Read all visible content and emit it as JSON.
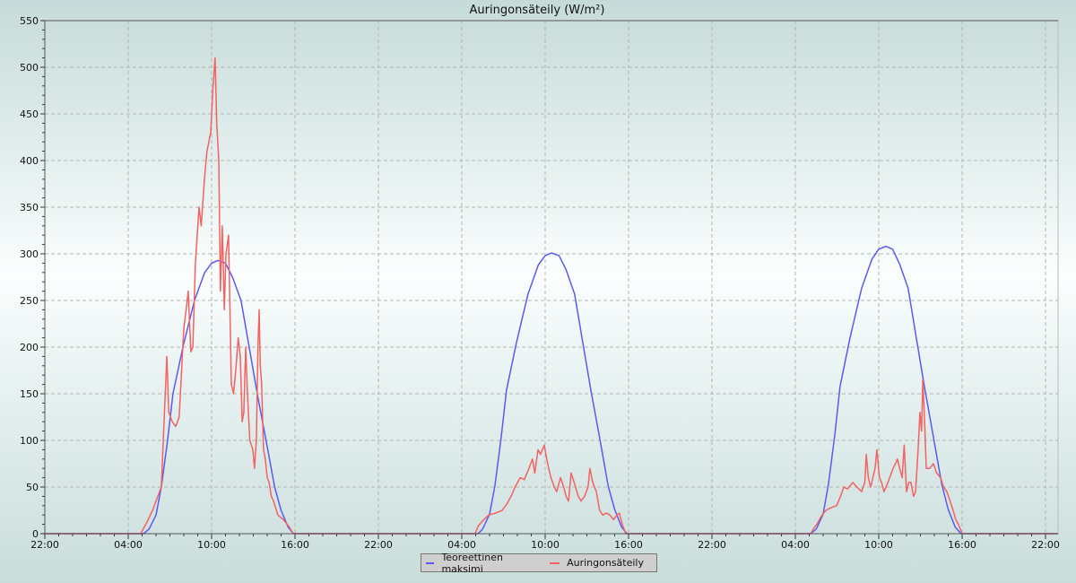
{
  "chart_data": {
    "type": "line",
    "title": "Auringonsäteily (W/m²)",
    "xlabel": "",
    "ylabel": "",
    "x_tick_labels": [
      "22:00",
      "04:00",
      "10:00",
      "16:00",
      "22:00",
      "04:00",
      "10:00",
      "16:00",
      "22:00",
      "04:00",
      "10:00",
      "16:00",
      "22:00"
    ],
    "x_range": [
      "22:00",
      "22:54"
    ],
    "ylim": [
      0,
      550
    ],
    "y_ticks": [
      0,
      50,
      100,
      150,
      200,
      250,
      300,
      350,
      400,
      450,
      500,
      550
    ],
    "grid": true,
    "legend_placement": "bottom",
    "series": [
      {
        "name": "Teoreettinen maksimi",
        "color": "#5a5af0",
        "days": [
          [
            [
              "05:06",
              0
            ],
            [
              "05:30",
              5
            ],
            [
              "06:00",
              20
            ],
            [
              "06:23",
              50
            ],
            [
              "06:50",
              100
            ],
            [
              "07:13",
              150
            ],
            [
              "07:56",
              200
            ],
            [
              "08:46",
              250
            ],
            [
              "09:30",
              280
            ],
            [
              "10:00",
              290
            ],
            [
              "10:28",
              293
            ],
            [
              "11:00",
              290
            ],
            [
              "11:30",
              275
            ],
            [
              "12:07",
              250
            ],
            [
              "12:42",
              200
            ],
            [
              "13:17",
              150
            ],
            [
              "13:55",
              100
            ],
            [
              "14:32",
              50
            ],
            [
              "15:00",
              25
            ],
            [
              "15:30",
              7
            ],
            [
              "15:53",
              0
            ]
          ],
          [
            [
              "05:10",
              0
            ],
            [
              "05:30",
              5
            ],
            [
              "06:00",
              21
            ],
            [
              "06:23",
              51
            ],
            [
              "06:50",
              103
            ],
            [
              "07:13",
              154
            ],
            [
              "07:56",
              205
            ],
            [
              "08:46",
              257
            ],
            [
              "09:30",
              288
            ],
            [
              "10:00",
              298
            ],
            [
              "10:27",
              301
            ],
            [
              "11:00",
              298
            ],
            [
              "11:30",
              283
            ],
            [
              "12:07",
              257
            ],
            [
              "12:42",
              205
            ],
            [
              "13:17",
              154
            ],
            [
              "13:55",
              103
            ],
            [
              "14:32",
              51
            ],
            [
              "15:00",
              26
            ],
            [
              "15:30",
              7
            ],
            [
              "15:53",
              0
            ]
          ],
          [
            [
              "05:06",
              0
            ],
            [
              "05:30",
              5
            ],
            [
              "06:00",
              21
            ],
            [
              "06:23",
              53
            ],
            [
              "06:50",
              105
            ],
            [
              "07:13",
              158
            ],
            [
              "07:56",
              210
            ],
            [
              "08:46",
              263
            ],
            [
              "09:30",
              294
            ],
            [
              "10:00",
              305
            ],
            [
              "10:31",
              308
            ],
            [
              "11:00",
              305
            ],
            [
              "11:30",
              289
            ],
            [
              "12:07",
              263
            ],
            [
              "12:42",
              210
            ],
            [
              "13:17",
              158
            ],
            [
              "13:55",
              105
            ],
            [
              "14:32",
              53
            ],
            [
              "15:00",
              26
            ],
            [
              "15:30",
              7
            ],
            [
              "15:55",
              0
            ]
          ]
        ]
      },
      {
        "name": "Auringonsäteily",
        "color": "#f46262",
        "days": [
          [
            [
              "04:54",
              0
            ],
            [
              "05:20",
              12
            ],
            [
              "05:45",
              25
            ],
            [
              "06:23",
              50
            ],
            [
              "06:40",
              150
            ],
            [
              "06:47",
              190
            ],
            [
              "06:55",
              130
            ],
            [
              "07:10",
              120
            ],
            [
              "07:25",
              115
            ],
            [
              "07:40",
              125
            ],
            [
              "08:00",
              220
            ],
            [
              "08:10",
              240
            ],
            [
              "08:19",
              260
            ],
            [
              "08:30",
              195
            ],
            [
              "08:39",
              200
            ],
            [
              "08:50",
              290
            ],
            [
              "09:06",
              350
            ],
            [
              "09:15",
              330
            ],
            [
              "09:29",
              380
            ],
            [
              "09:40",
              410
            ],
            [
              "09:56",
              430
            ],
            [
              "10:05",
              475
            ],
            [
              "10:15",
              510
            ],
            [
              "10:22",
              440
            ],
            [
              "10:31",
              400
            ],
            [
              "10:38",
              260
            ],
            [
              "10:46",
              330
            ],
            [
              "10:55",
              240
            ],
            [
              "11:02",
              300
            ],
            [
              "11:13",
              320
            ],
            [
              "11:25",
              160
            ],
            [
              "11:35",
              150
            ],
            [
              "11:44",
              175
            ],
            [
              "11:55",
              210
            ],
            [
              "12:04",
              190
            ],
            [
              "12:12",
              120
            ],
            [
              "12:19",
              130
            ],
            [
              "12:27",
              200
            ],
            [
              "12:35",
              150
            ],
            [
              "12:45",
              100
            ],
            [
              "12:58",
              90
            ],
            [
              "13:05",
              70
            ],
            [
              "13:13",
              100
            ],
            [
              "13:20",
              200
            ],
            [
              "13:25",
              240
            ],
            [
              "13:30",
              180
            ],
            [
              "13:36",
              160
            ],
            [
              "13:44",
              90
            ],
            [
              "13:52",
              80
            ],
            [
              "14:00",
              60
            ],
            [
              "14:08",
              55
            ],
            [
              "14:18",
              40
            ],
            [
              "14:27",
              35
            ],
            [
              "14:46",
              20
            ],
            [
              "15:10",
              15
            ],
            [
              "15:33",
              8
            ],
            [
              "15:53",
              0
            ]
          ],
          [
            [
              "04:58",
              0
            ],
            [
              "05:10",
              8
            ],
            [
              "05:17",
              10
            ],
            [
              "05:35",
              15
            ],
            [
              "05:56",
              20
            ],
            [
              "06:25",
              22
            ],
            [
              "06:54",
              25
            ],
            [
              "07:15",
              32
            ],
            [
              "07:33",
              40
            ],
            [
              "07:50",
              50
            ],
            [
              "08:12",
              60
            ],
            [
              "08:30",
              58
            ],
            [
              "08:50",
              70
            ],
            [
              "09:05",
              80
            ],
            [
              "09:15",
              65
            ],
            [
              "09:29",
              90
            ],
            [
              "09:40",
              85
            ],
            [
              "09:56",
              95
            ],
            [
              "10:05",
              82
            ],
            [
              "10:15",
              70
            ],
            [
              "10:25",
              60
            ],
            [
              "10:39",
              50
            ],
            [
              "10:50",
              45
            ],
            [
              "11:06",
              60
            ],
            [
              "11:20",
              50
            ],
            [
              "11:30",
              40
            ],
            [
              "11:41",
              35
            ],
            [
              "11:52",
              65
            ],
            [
              "12:05",
              55
            ],
            [
              "12:23",
              40
            ],
            [
              "12:35",
              35
            ],
            [
              "12:50",
              40
            ],
            [
              "13:05",
              50
            ],
            [
              "13:13",
              70
            ],
            [
              "13:25",
              55
            ],
            [
              "13:41",
              45
            ],
            [
              "13:55",
              25
            ],
            [
              "14:08",
              20
            ],
            [
              "14:25",
              22
            ],
            [
              "14:39",
              20
            ],
            [
              "14:55",
              15
            ],
            [
              "15:10",
              20
            ],
            [
              "15:20",
              22
            ],
            [
              "15:33",
              10
            ],
            [
              "15:48",
              0
            ]
          ],
          [
            [
              "05:06",
              0
            ],
            [
              "05:20",
              6
            ],
            [
              "05:33",
              10
            ],
            [
              "05:50",
              18
            ],
            [
              "06:12",
              25
            ],
            [
              "06:35",
              28
            ],
            [
              "06:58",
              30
            ],
            [
              "07:15",
              40
            ],
            [
              "07:29",
              50
            ],
            [
              "07:45",
              48
            ],
            [
              "08:08",
              55
            ],
            [
              "08:25",
              50
            ],
            [
              "08:46",
              45
            ],
            [
              "09:00",
              55
            ],
            [
              "09:06",
              85
            ],
            [
              "09:15",
              60
            ],
            [
              "09:25",
              50
            ],
            [
              "09:35",
              60
            ],
            [
              "09:44",
              70
            ],
            [
              "09:52",
              90
            ],
            [
              "10:03",
              60
            ],
            [
              "10:12",
              55
            ],
            [
              "10:23",
              45
            ],
            [
              "10:40",
              55
            ],
            [
              "11:02",
              70
            ],
            [
              "11:12",
              75
            ],
            [
              "11:21",
              80
            ],
            [
              "11:30",
              70
            ],
            [
              "11:41",
              60
            ],
            [
              "11:50",
              95
            ],
            [
              "12:00",
              45
            ],
            [
              "12:10",
              55
            ],
            [
              "12:19",
              55
            ],
            [
              "12:30",
              40
            ],
            [
              "12:39",
              45
            ],
            [
              "12:50",
              90
            ],
            [
              "12:58",
              130
            ],
            [
              "13:05",
              110
            ],
            [
              "13:10",
              165
            ],
            [
              "13:18",
              120
            ],
            [
              "13:25",
              70
            ],
            [
              "13:40",
              70
            ],
            [
              "13:56",
              75
            ],
            [
              "14:10",
              65
            ],
            [
              "14:27",
              60
            ],
            [
              "14:40",
              50
            ],
            [
              "14:54",
              45
            ],
            [
              "15:08",
              35
            ],
            [
              "15:21",
              25
            ],
            [
              "15:33",
              15
            ],
            [
              "15:44",
              10
            ],
            [
              "16:00",
              0
            ]
          ]
        ]
      }
    ]
  }
}
